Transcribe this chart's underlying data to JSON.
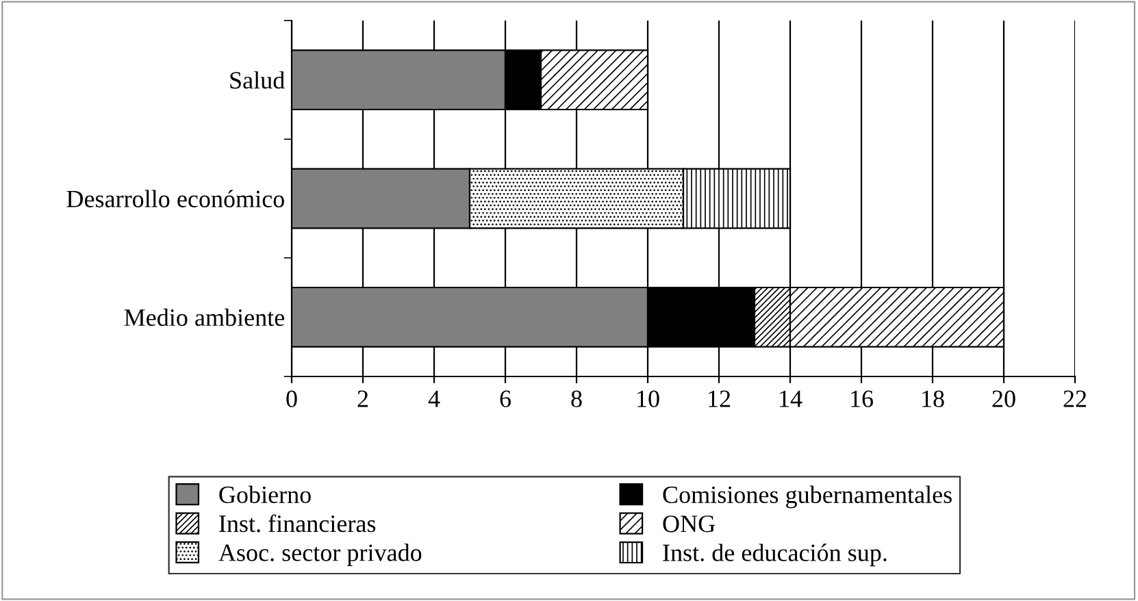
{
  "chart_data": {
    "type": "bar",
    "orientation": "horizontal",
    "stacked": true,
    "categories": [
      "Salud",
      "Desarrollo económico",
      "Medio ambiente"
    ],
    "series": [
      {
        "name": "Gobierno",
        "color": "#808080",
        "values": [
          6,
          5,
          10
        ]
      },
      {
        "name": "Comisiones gubernamentales",
        "color": "#000000",
        "values": [
          1,
          null,
          3
        ]
      },
      {
        "name": "Inst. financieras",
        "color": "#000000",
        "values": [
          null,
          null,
          1
        ]
      },
      {
        "name": "ONG",
        "color": "#000000",
        "values": [
          3,
          null,
          6
        ]
      },
      {
        "name": "Asoc. sector privado",
        "color": "#000000",
        "values": [
          null,
          6,
          null
        ]
      },
      {
        "name": "Inst. de educación sup.",
        "color": "#000000",
        "values": [
          null,
          3,
          null
        ]
      }
    ],
    "xlim": [
      0,
      22
    ],
    "xticks": [
      0,
      2,
      4,
      6,
      8,
      10,
      12,
      14,
      16,
      18,
      20,
      22
    ],
    "grid": "x",
    "legend": "bottom"
  }
}
